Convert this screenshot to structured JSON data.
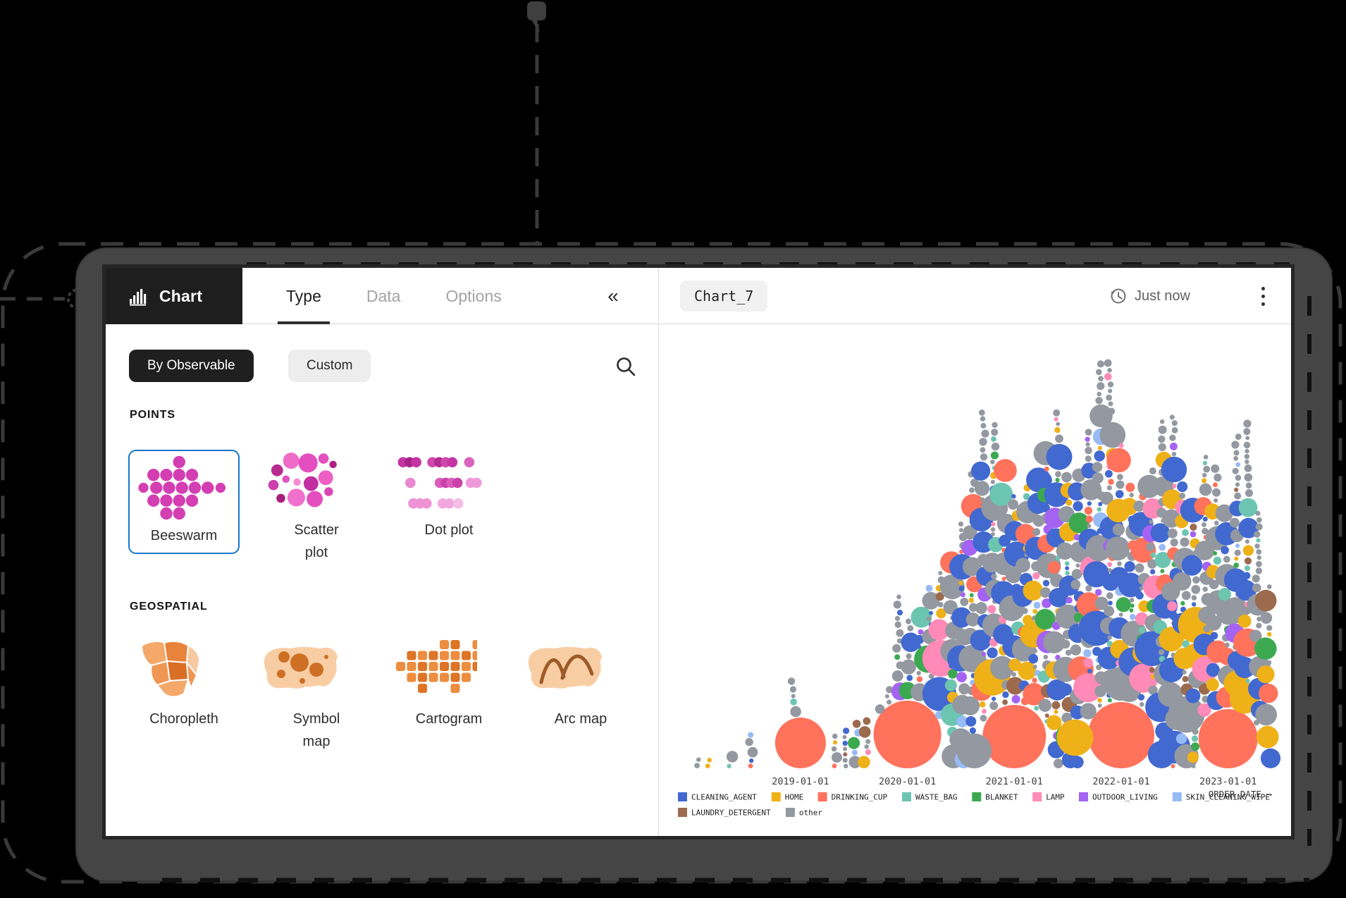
{
  "window": {
    "brand": {
      "label": "Chart"
    },
    "tabs": [
      {
        "label": "Type",
        "active": true
      },
      {
        "label": "Data",
        "active": false
      },
      {
        "label": "Options",
        "active": false
      }
    ],
    "collapse_label": "«",
    "filters": [
      {
        "label": "By Observable",
        "selected": true
      },
      {
        "label": "Custom",
        "selected": false
      }
    ],
    "sections": [
      {
        "title": "POINTS",
        "items": [
          {
            "label": "Beeswarm",
            "lines": [
              "Beeswarm"
            ],
            "selected": true
          },
          {
            "label": "Scatter plot",
            "lines": [
              "Scatter",
              "plot"
            ],
            "selected": false
          },
          {
            "label": "Dot plot",
            "lines": [
              "Dot plot"
            ],
            "selected": false
          }
        ]
      },
      {
        "title": "GEOSPATIAL",
        "items": [
          {
            "label": "Choropleth",
            "lines": [
              "Choropleth"
            ],
            "selected": false
          },
          {
            "label": "Symbol map",
            "lines": [
              "Symbol",
              "map"
            ],
            "selected": false
          },
          {
            "label": "Cartogram",
            "lines": [
              "Cartogram"
            ],
            "selected": false
          },
          {
            "label": "Arc map",
            "lines": [
              "Arc map"
            ],
            "selected": false
          }
        ]
      }
    ],
    "chart_header": {
      "name": "Chart_7",
      "status": "Just now"
    }
  },
  "chart_data": {
    "type": "beeswarm",
    "title": "Chart_7",
    "xlabel": "ORDER_DATE →",
    "x_ticks": [
      {
        "label": "2019-01-01",
        "x": 0.184
      },
      {
        "label": "2020-01-01",
        "x": 0.369
      },
      {
        "label": "2021-01-01",
        "x": 0.554
      },
      {
        "label": "2022-01-01",
        "x": 0.739
      },
      {
        "label": "2023-01-01",
        "x": 0.924
      }
    ],
    "legend": [
      {
        "label": "CLEANING_AGENT",
        "color": "#4269d0"
      },
      {
        "label": "HOME",
        "color": "#efb118"
      },
      {
        "label": "DRINKING_CUP",
        "color": "#ff725c"
      },
      {
        "label": "WASTE_BAG",
        "color": "#6cc5b0"
      },
      {
        "label": "BLANKET",
        "color": "#3ca951"
      },
      {
        "label": "LAMP",
        "color": "#ff8ab7"
      },
      {
        "label": "OUTDOOR_LIVING",
        "color": "#a463f2"
      },
      {
        "label": "SKIN_CLEANING_WIPE",
        "color": "#97bbf5"
      },
      {
        "label": "LAUNDRY_DETERGENT",
        "color": "#9c6b4e"
      },
      {
        "label": "other",
        "color": "#9498a0"
      }
    ],
    "legend_rows": [
      8,
      2
    ],
    "envelope": [
      [
        0.0,
        0.025
      ],
      [
        0.03,
        0.035
      ],
      [
        0.067,
        0.048
      ],
      [
        0.098,
        0.08
      ],
      [
        0.128,
        0.056
      ],
      [
        0.152,
        0.096
      ],
      [
        0.167,
        0.143
      ],
      [
        0.174,
        0.271
      ],
      [
        0.178,
        0.279
      ],
      [
        0.184,
        0.135
      ],
      [
        0.201,
        0.056
      ],
      [
        0.232,
        0.067
      ],
      [
        0.262,
        0.088
      ],
      [
        0.293,
        0.111
      ],
      [
        0.323,
        0.143
      ],
      [
        0.348,
        0.223
      ],
      [
        0.356,
        0.462
      ],
      [
        0.363,
        0.366
      ],
      [
        0.378,
        0.334
      ],
      [
        0.396,
        0.39
      ],
      [
        0.421,
        0.438
      ],
      [
        0.445,
        0.486
      ],
      [
        0.47,
        0.589
      ],
      [
        0.488,
        0.717
      ],
      [
        0.504,
        0.844
      ],
      [
        0.512,
        0.932
      ],
      [
        0.521,
        0.717
      ],
      [
        0.54,
        0.685
      ],
      [
        0.557,
        0.621
      ],
      [
        0.577,
        0.637
      ],
      [
        0.594,
        0.685
      ],
      [
        0.613,
        0.748
      ],
      [
        0.628,
        0.812
      ],
      [
        0.638,
        0.685
      ],
      [
        0.655,
        0.637
      ],
      [
        0.674,
        0.701
      ],
      [
        0.691,
        0.844
      ],
      [
        0.707,
        0.955
      ],
      [
        0.715,
        0.998
      ],
      [
        0.723,
        0.876
      ],
      [
        0.738,
        0.748
      ],
      [
        0.756,
        0.653
      ],
      [
        0.774,
        0.613
      ],
      [
        0.794,
        0.685
      ],
      [
        0.811,
        0.796
      ],
      [
        0.823,
        0.908
      ],
      [
        0.833,
        0.748
      ],
      [
        0.848,
        0.637
      ],
      [
        0.866,
        0.621
      ],
      [
        0.882,
        0.701
      ],
      [
        0.896,
        0.748
      ],
      [
        0.906,
        0.653
      ],
      [
        0.921,
        0.589
      ],
      [
        0.935,
        0.717
      ],
      [
        0.95,
        0.9
      ],
      [
        0.96,
        0.748
      ],
      [
        0.972,
        0.621
      ],
      [
        0.988,
        0.478
      ],
      [
        1.0,
        0.366
      ]
    ],
    "anchors": [
      {
        "x": 0.184,
        "r": 36,
        "color": "#ff725c"
      },
      {
        "x": 0.369,
        "r": 48,
        "color": "#ff725c"
      },
      {
        "x": 0.554,
        "r": 45,
        "color": "#ff725c"
      },
      {
        "x": 0.739,
        "r": 47,
        "color": "#ff725c"
      },
      {
        "x": 0.924,
        "r": 42,
        "color": "#ff725c"
      }
    ],
    "render_params": {
      "seed": 20,
      "col_step": 15,
      "weights_small": [
        0.13,
        0.08,
        0.06,
        0.06,
        0.05,
        0.05,
        0.05,
        0.04,
        0.04,
        0.44
      ],
      "weights_large": [
        0.3,
        0.07,
        0.09,
        0.03,
        0.06,
        0.05,
        0.02,
        0.01,
        0.01,
        0.36
      ],
      "spire_gray_bias": 0.72
    }
  }
}
